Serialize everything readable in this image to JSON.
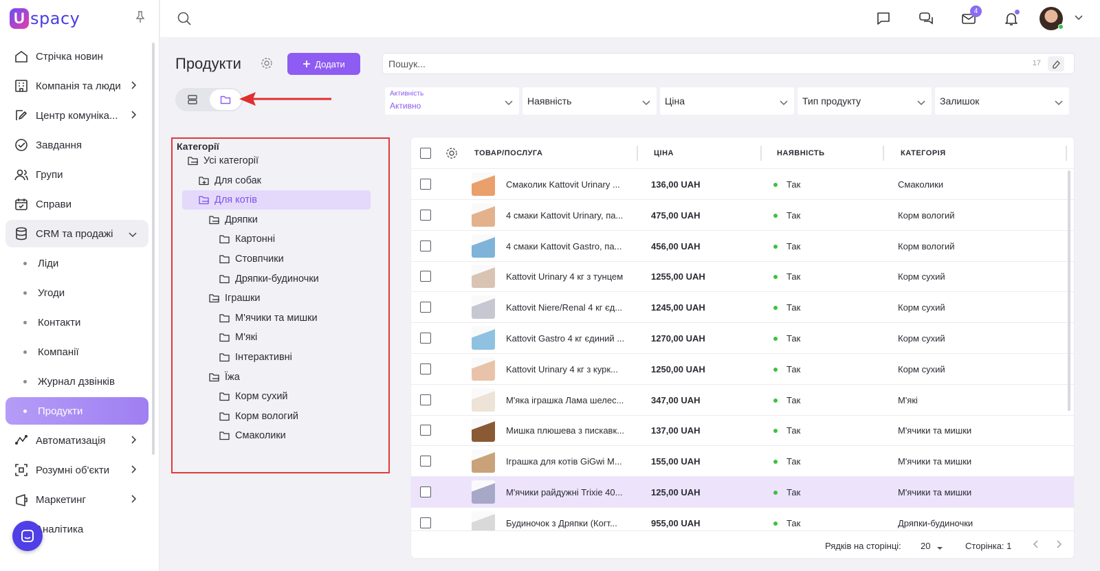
{
  "app": {
    "logo_mark": "U",
    "logo_text": "spacy"
  },
  "sidebar": {
    "items": [
      {
        "label": "Стрічка новин",
        "icon": "home-icon"
      },
      {
        "label": "Компанія та люди",
        "icon": "building-icon",
        "has_children": true
      },
      {
        "label": "Центр комуніка...",
        "icon": "edit-icon",
        "has_children": true
      },
      {
        "label": "Завдання",
        "icon": "check-circle-icon"
      },
      {
        "label": "Групи",
        "icon": "users-icon"
      },
      {
        "label": "Справи",
        "icon": "calendar-icon"
      },
      {
        "label": "CRM та продажі",
        "icon": "database-icon",
        "expanded": true
      },
      {
        "label": "Ліди",
        "sub": true
      },
      {
        "label": "Угоди",
        "sub": true
      },
      {
        "label": "Контакти",
        "sub": true
      },
      {
        "label": "Компанії",
        "sub": true
      },
      {
        "label": "Журнал дзвінків",
        "sub": true
      },
      {
        "label": "Продукти",
        "sub": true,
        "active": true
      },
      {
        "label": "Автоматизація",
        "icon": "automation-icon",
        "has_children": true
      },
      {
        "label": "Розумні об'єкти",
        "icon": "smart-object-icon",
        "has_children": true
      },
      {
        "label": "Маркетинг",
        "icon": "marketing-icon",
        "has_children": true
      },
      {
        "label": "Аналітика",
        "icon": "analytics-icon"
      }
    ]
  },
  "topbar": {
    "mail_badge": "4"
  },
  "page": {
    "title": "Продукти",
    "add_button": "Додати"
  },
  "search": {
    "placeholder": "Пошук...",
    "count": "17"
  },
  "filters": [
    {
      "label": "Активність",
      "value": "Активно"
    },
    {
      "label": "Наявність"
    },
    {
      "label": "Ціна"
    },
    {
      "label": "Тип продукту"
    },
    {
      "label": "Залишок"
    }
  ],
  "categories": {
    "title": "Категорії",
    "items": [
      {
        "label": "Усі категорії",
        "level": 0,
        "icon": "folder-open-icon"
      },
      {
        "label": "Для собак",
        "level": 1,
        "icon": "folder-plus-icon"
      },
      {
        "label": "Для котів",
        "level": 1,
        "icon": "folder-open-icon",
        "active": true
      },
      {
        "label": "Дряпки",
        "level": 2,
        "icon": "folder-open-icon"
      },
      {
        "label": "Картонні",
        "level": 3,
        "icon": "folder-icon"
      },
      {
        "label": "Стовпчики",
        "level": 3,
        "icon": "folder-icon"
      },
      {
        "label": "Дряпки-будиночки",
        "level": 3,
        "icon": "folder-icon"
      },
      {
        "label": "Іграшки",
        "level": 2,
        "icon": "folder-open-icon"
      },
      {
        "label": "М'ячики та мишки",
        "level": 3,
        "icon": "folder-icon"
      },
      {
        "label": "М'які",
        "level": 3,
        "icon": "folder-icon"
      },
      {
        "label": "Інтерактивні",
        "level": 3,
        "icon": "folder-icon"
      },
      {
        "label": "Їжа",
        "level": 2,
        "icon": "folder-open-icon"
      },
      {
        "label": "Корм сухий",
        "level": 3,
        "icon": "folder-icon"
      },
      {
        "label": "Корм вологий",
        "level": 3,
        "icon": "folder-icon"
      },
      {
        "label": "Смаколики",
        "level": 3,
        "icon": "folder-icon"
      }
    ]
  },
  "table": {
    "columns": [
      "ТОВАР/ПОСЛУГА",
      "ЦІНА",
      "НАЯВНІСТЬ",
      "КАТЕГОРІЯ"
    ],
    "rows": [
      {
        "name": "Смаколик Kattovit Urinary ...",
        "price": "136,00 UAH",
        "avail": "Так",
        "category": "Смаколики",
        "thumb": "#e9a06b"
      },
      {
        "name": "4 смаки Kattovit Urinary, па...",
        "price": "475,00 UAH",
        "avail": "Так",
        "category": "Корм вологий",
        "thumb": "#e3b28d"
      },
      {
        "name": "4 смаки Kattovit Gastro, па...",
        "price": "456,00 UAH",
        "avail": "Так",
        "category": "Корм вологий",
        "thumb": "#7fb3d8"
      },
      {
        "name": "Kattovit Urinary 4 кг з тунцем",
        "price": "1255,00 UAH",
        "avail": "Так",
        "category": "Корм сухий",
        "thumb": "#d9c4b4"
      },
      {
        "name": "Kattovit Niere/Renal 4 кг єд...",
        "price": "1245,00 UAH",
        "avail": "Так",
        "category": "Корм сухий",
        "thumb": "#c7c7d2"
      },
      {
        "name": "Kattovit Gastro 4 кг єдиний ...",
        "price": "1270,00 UAH",
        "avail": "Так",
        "category": "Корм сухий",
        "thumb": "#8ec2e0"
      },
      {
        "name": "Kattovit Urinary 4 кг з курк...",
        "price": "1250,00 UAH",
        "avail": "Так",
        "category": "Корм сухий",
        "thumb": "#e8c3a9"
      },
      {
        "name": "М'яка іграшка Лама шелес...",
        "price": "347,00 UAH",
        "avail": "Так",
        "category": "М'які",
        "thumb": "#ede3d6"
      },
      {
        "name": "Мишка плюшева з пискавк...",
        "price": "137,00 UAH",
        "avail": "Так",
        "category": "М'ячики та мишки",
        "thumb": "#8a5a34"
      },
      {
        "name": "Іграшка для котів GiGwi M...",
        "price": "155,00 UAH",
        "avail": "Так",
        "category": "М'ячики та мишки",
        "thumb": "#c9a27a"
      },
      {
        "name": "М'ячики райдужні Trixie 40...",
        "price": "125,00 UAH",
        "avail": "Так",
        "category": "М'ячики та мишки",
        "thumb": "#a7a7c8"
      },
      {
        "name": "Будиночок з Дряпки (Когт...",
        "price": "955,00 UAH",
        "avail": "Так",
        "category": "Дряпки-будиночки",
        "thumb": "#d9d9d9"
      }
    ],
    "footer": {
      "rows_per_page_label": "Рядків на сторінці:",
      "rows_per_page": "20",
      "page_label": "Сторінка: 1"
    }
  },
  "colors": {
    "accent": "#8e5cf2",
    "highlight_border": "#e03a3a",
    "available": "#3cc23c"
  }
}
